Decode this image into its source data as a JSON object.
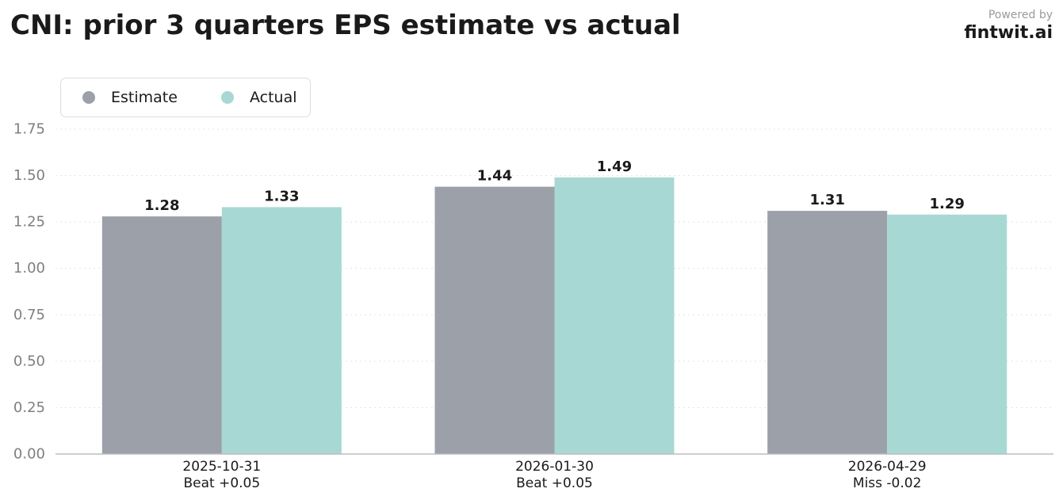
{
  "chart_data": {
    "type": "bar",
    "title": "CNI: prior 3 quarters EPS estimate vs actual",
    "categories": [
      "2025-10-31",
      "2026-01-30",
      "2026-04-29"
    ],
    "category_notes": [
      "Beat +0.05",
      "Beat +0.05",
      "Miss -0.02"
    ],
    "series": [
      {
        "name": "Estimate",
        "values": [
          1.28,
          1.44,
          1.31
        ],
        "color": "#9ca0a8"
      },
      {
        "name": "Actual",
        "values": [
          1.33,
          1.49,
          1.29
        ],
        "color": "#a8d8d4"
      }
    ],
    "value_labels": [
      [
        "1.28",
        "1.44",
        "1.31"
      ],
      [
        "1.33",
        "1.49",
        "1.29"
      ]
    ],
    "yticks": [
      "0.00",
      "0.25",
      "0.50",
      "0.75",
      "1.00",
      "1.25",
      "1.50",
      "1.75"
    ],
    "ylim": [
      0,
      1.75
    ],
    "grid": true,
    "legend_position": "top-left"
  },
  "branding": {
    "powered_by": "Powered by",
    "name": "fintwit.ai"
  }
}
